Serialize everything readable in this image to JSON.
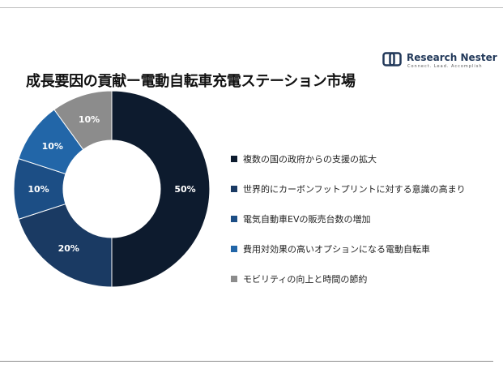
{
  "title": "成長要因の貢献ー電動自転車充電ステーション市場",
  "logo": {
    "name": "Research Nester",
    "tagline": "Connect. Lead. Accomplish"
  },
  "chart_data": {
    "type": "pie",
    "subtype": "donut",
    "categories": [
      "複数の国の政府からの支援の拡大",
      "世界的にカーボンフットプリントに対する意識の高まり",
      "電気自動車EVの販売台数の増加",
      "費用対効果の高いオプションになる電動自転車",
      "モビリティの向上と時間の節約"
    ],
    "values": [
      50,
      20,
      10,
      10,
      10
    ],
    "data_labels": [
      "50%",
      "20%",
      "10%",
      "10%",
      "10%"
    ],
    "colors": [
      "#0d1b2e",
      "#1a3a63",
      "#1c4e85",
      "#2266a8",
      "#8c8c8c"
    ],
    "legend_position": "right",
    "start_angle": "12 o'clock",
    "direction": "clockwise"
  }
}
